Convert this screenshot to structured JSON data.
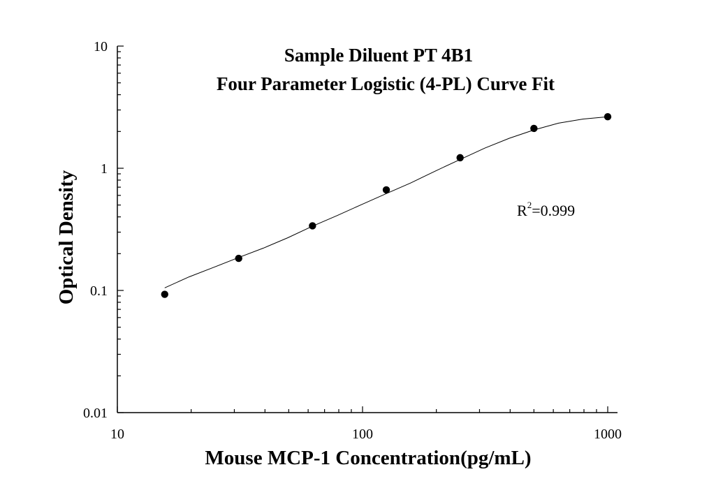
{
  "chart_data": {
    "type": "scatter",
    "title_line1": "Sample Diluent PT 4B1",
    "title_line2": "Four Parameter Logistic (4-PL) Curve Fit",
    "xlabel": "Mouse MCP-1 Concentration(pg/mL)",
    "ylabel": "Optical Density",
    "xscale": "log",
    "yscale": "log",
    "xlim": [
      10,
      1000
    ],
    "ylim": [
      0.01,
      10
    ],
    "x_ticks": [
      {
        "value": 10,
        "label": "10"
      },
      {
        "value": 100,
        "label": "100"
      },
      {
        "value": 1000,
        "label": "1000"
      }
    ],
    "y_ticks": [
      {
        "value": 0.01,
        "label": "0.01"
      },
      {
        "value": 0.1,
        "label": "0.1"
      },
      {
        "value": 1,
        "label": "1"
      },
      {
        "value": 10,
        "label": "10"
      }
    ],
    "annotation": {
      "prefix": "R",
      "superscript": "2",
      "suffix": "=0.999"
    },
    "series": [
      {
        "x": [
          15.6,
          31.25,
          62.5,
          125,
          250,
          500,
          1000
        ],
        "y": [
          0.093,
          0.183,
          0.338,
          0.666,
          1.22,
          2.12,
          2.64
        ]
      }
    ],
    "fit_curve": {
      "x": [
        15.6,
        19.6,
        24.8,
        31.25,
        39.4,
        49.6,
        62.5,
        78.7,
        99.2,
        125,
        157.5,
        198.4,
        250,
        315,
        397,
        500,
        630,
        794,
        1000
      ],
      "y": [
        0.105,
        0.129,
        0.155,
        0.186,
        0.222,
        0.27,
        0.336,
        0.41,
        0.505,
        0.62,
        0.76,
        0.95,
        1.18,
        1.46,
        1.76,
        2.06,
        2.34,
        2.53,
        2.64
      ]
    },
    "grid": false
  }
}
